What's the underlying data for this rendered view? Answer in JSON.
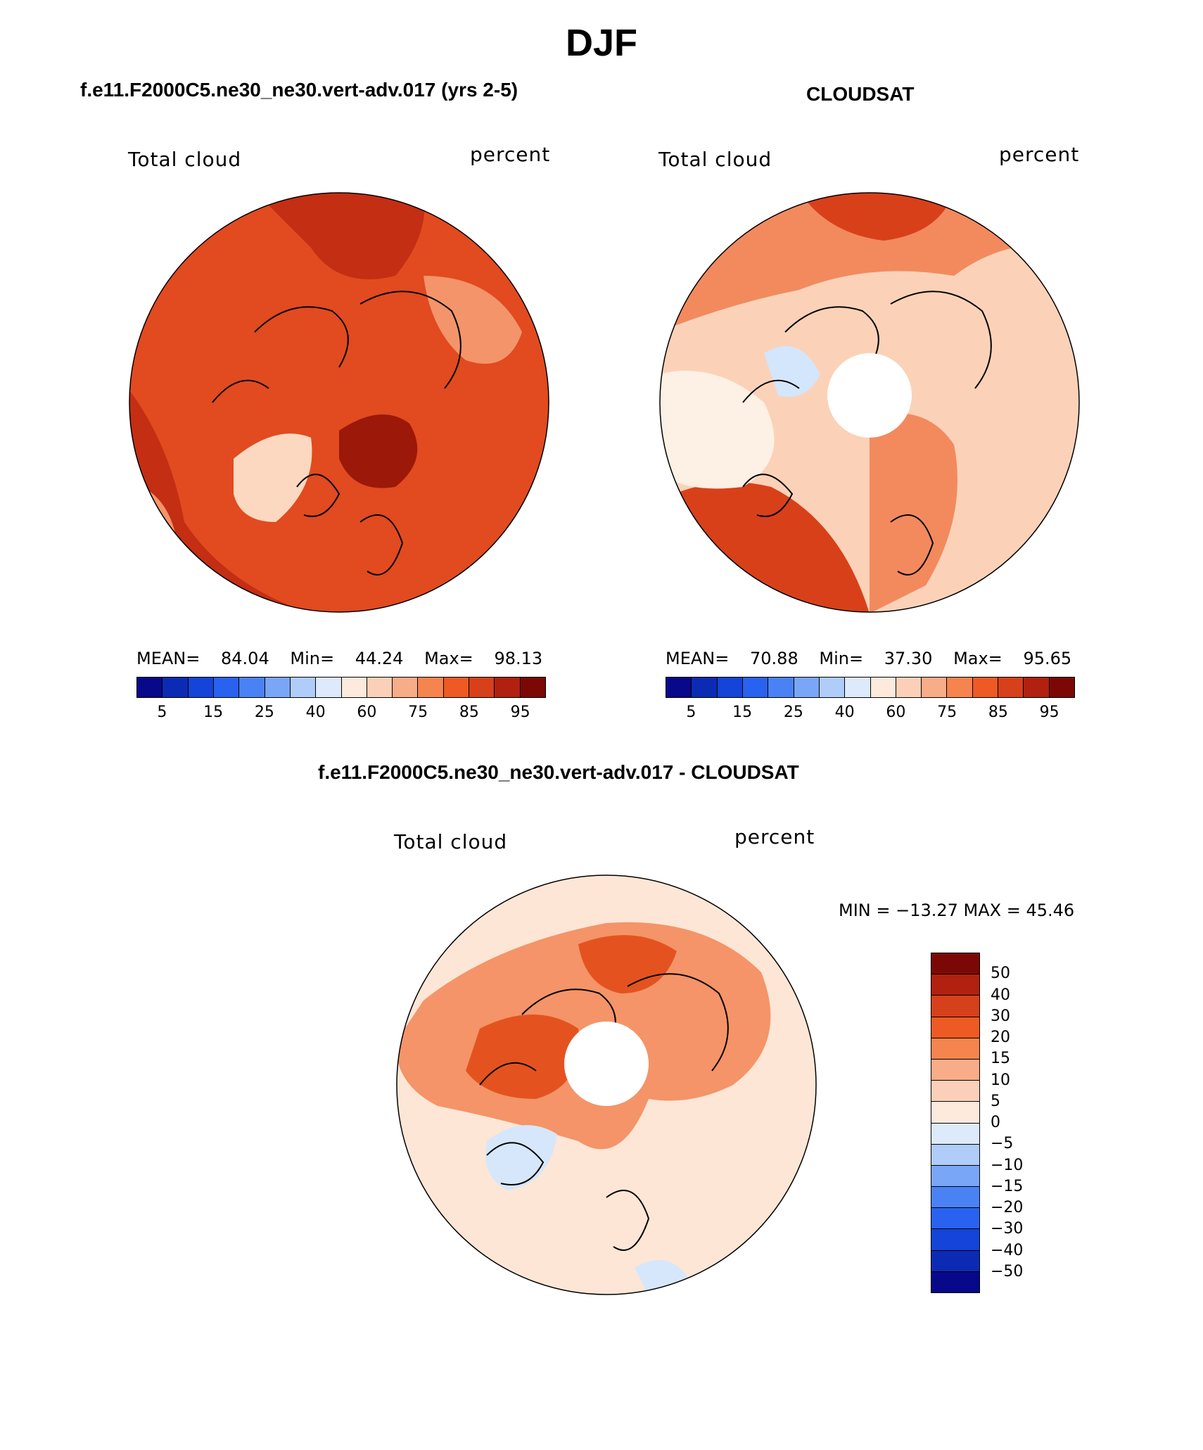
{
  "title": "DJF",
  "panels": [
    {
      "id": "model",
      "title": "f.e11.F2000C5.ne30_ne30.vert-adv.017 (yrs 2-5)",
      "left_label": "Total cloud",
      "right_label": "percent",
      "stats": {
        "mean_label": "MEAN=",
        "mean": "84.04",
        "min_label": "Min=",
        "min": "44.24",
        "max_label": "Max=",
        "max": "98.13"
      }
    },
    {
      "id": "obs",
      "title": "CLOUDSAT",
      "left_label": "Total cloud",
      "right_label": "percent",
      "stats": {
        "mean_label": "MEAN=",
        "mean": "70.88",
        "min_label": "Min=",
        "min": "37.30",
        "max_label": "Max=",
        "max": "95.65"
      }
    }
  ],
  "diff_panel": {
    "title": "f.e11.F2000C5.ne30_ne30.vert-adv.017 - CLOUDSAT",
    "left_label": "Total cloud",
    "right_label": "percent",
    "minmax": "MIN = −13.27 MAX =  45.46"
  },
  "colorbar_abs": {
    "colors": [
      "#08088a",
      "#0c2bb4",
      "#1444d8",
      "#2a62f0",
      "#4a82f6",
      "#7aa6f8",
      "#b0ccf8",
      "#dceafc",
      "#fdeadc",
      "#fcd0b8",
      "#f9ac88",
      "#f6844e",
      "#ee5a24",
      "#d6401a",
      "#b22010",
      "#7c0806"
    ],
    "ticks": [
      "5",
      "15",
      "25",
      "40",
      "60",
      "75",
      "85",
      "95"
    ]
  },
  "colorbar_diff": {
    "colors": [
      "#7c0806",
      "#b22010",
      "#d6401a",
      "#ee5a24",
      "#f6844e",
      "#f9ac88",
      "#fcd0b8",
      "#fdeadc",
      "#dceafc",
      "#b0ccf8",
      "#7aa6f8",
      "#4a82f6",
      "#2a62f0",
      "#1444d8",
      "#0c2bb4",
      "#08088a"
    ],
    "ticks": [
      "50",
      "40",
      "30",
      "20",
      "15",
      "10",
      "5",
      "0",
      "−5",
      "−10",
      "−15",
      "−20",
      "−30",
      "−40",
      "−50"
    ]
  },
  "map_colors": {
    "model_base": "#e24a20",
    "model_dark": "#c42e12",
    "model_darker": "#9c1808",
    "model_light": "#f4946a",
    "model_pale": "#fcd8c0",
    "obs_base": "#fbd2b8",
    "obs_mid": "#f28a5e",
    "obs_dark": "#d8401a",
    "obs_pale": "#fdf0e4",
    "obs_blue": "#d4e6fb",
    "diff_base": "#fde6d6",
    "diff_mid": "#f49468",
    "diff_dark": "#e4531f",
    "diff_blue": "#d6e7fb"
  }
}
